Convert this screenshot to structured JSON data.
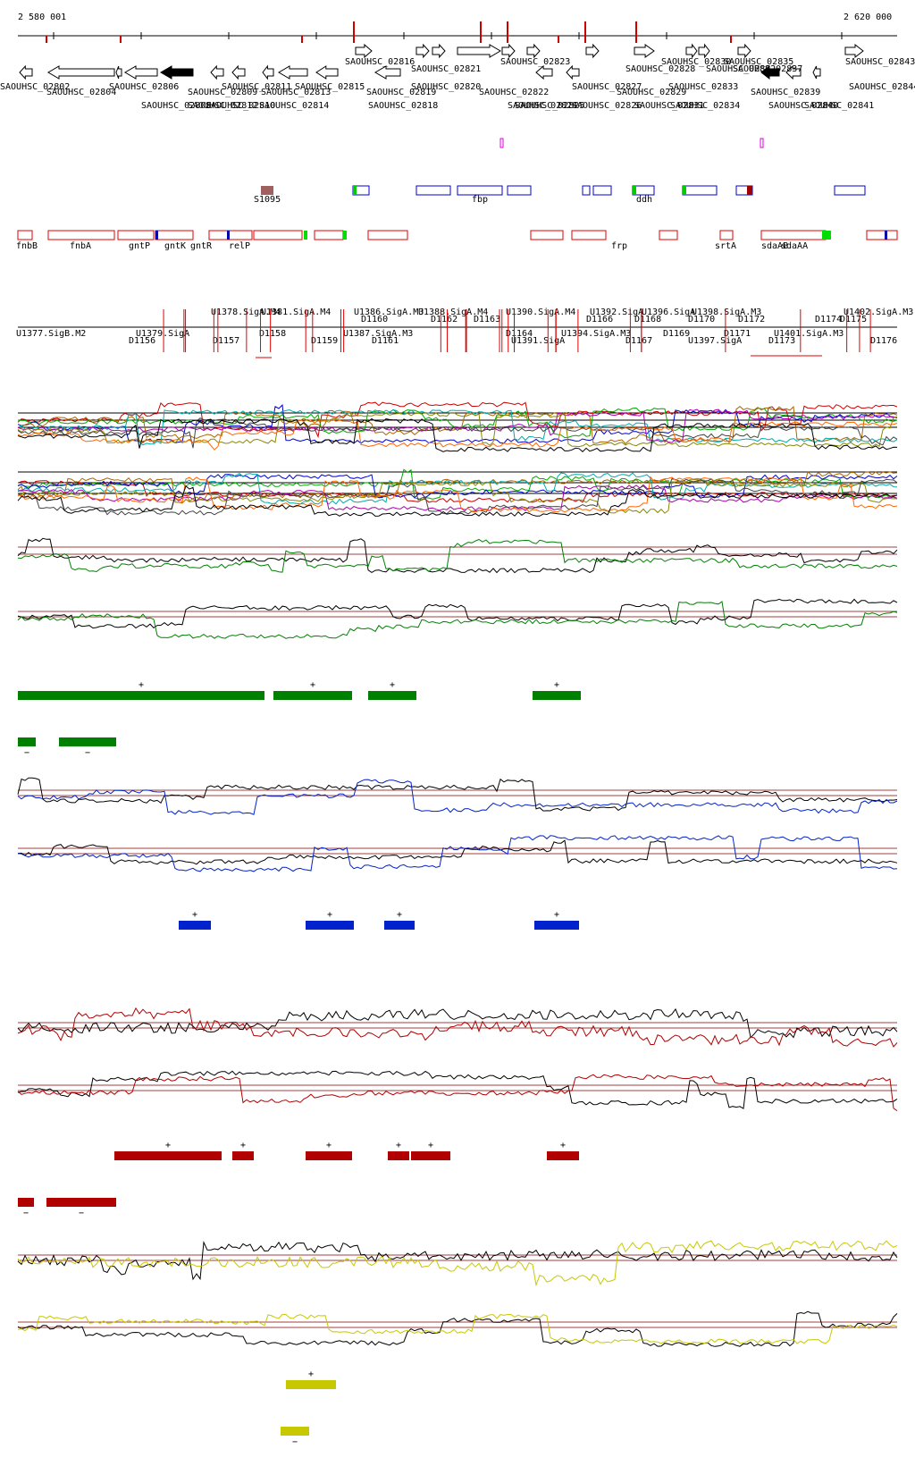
{
  "ruler": {
    "start_label": "2 580 001",
    "end_label": "2 620 000"
  },
  "genes_top": [
    {
      "label": "SAOUHSC_02816",
      "dir": "+"
    },
    {
      "label": "SAOUHSC_02821",
      "dir": "+"
    },
    {
      "label": "SAOUHSC_02823",
      "dir": "+"
    },
    {
      "label": "SAOUHSC_02828",
      "dir": "+"
    },
    {
      "label": "SAOUHSC_02830",
      "dir": "+"
    },
    {
      "label": "SAOUHSC_02832",
      "dir": "+"
    },
    {
      "label": "SAOUHSC_02835",
      "dir": "+"
    },
    {
      "label": "SAOUHSC_02837",
      "dir": "+"
    },
    {
      "label": "SAOUHSC_02843",
      "dir": "+"
    }
  ],
  "genes_bottom_row1": [
    "SAOUHSC_02802",
    "SAOUHSC_02804",
    "SAOUHSC_02806",
    "SAOUHSC_02809",
    "SAOUHSC_02811",
    "SAOUHSC_02813",
    "SAOUHSC_02815",
    "SAOUHSC_02819",
    "SAOUHSC_02820",
    "SAOUHSC_02822",
    "SAOUHSC_02827",
    "SAOUHSC_02829",
    "SAOUHSC_02833",
    "SAOUHSC_02839",
    "SAOUHSC_02844"
  ],
  "genes_bottom_row2": [
    "SAOUHSC_02808",
    "SAOUHSC_02810",
    "SAOUHSC_02812",
    "SAOUHSC_02814",
    "SAOUHSC_02818",
    "SAOUHSC_02824",
    "SAOUHSC_02825",
    "SAOUHSC_02826",
    "SAOUHSC_02831",
    "SAOUHSC_02834",
    "SAOUHSC_02840",
    "SAOUHSC_02841"
  ],
  "regulatory_labels": [
    {
      "text": "S1095"
    },
    {
      "text": "fbp"
    },
    {
      "text": "ddh"
    }
  ],
  "operon_labels": [
    {
      "text": "fnbB"
    },
    {
      "text": "fnbA"
    },
    {
      "text": "gntP"
    },
    {
      "text": "gntK"
    },
    {
      "text": "gntR"
    },
    {
      "text": "relP"
    },
    {
      "text": "frp"
    },
    {
      "text": "srtA"
    },
    {
      "text": "sdaAB"
    },
    {
      "text": "sdaAA"
    }
  ],
  "tu_above": [
    "U1378.SigA.M4",
    "U1381.SigA.M4",
    "U1386.SigA.M3",
    "U1388.SigA.M4",
    "U1390.SigA.M4",
    "U1392.SigA",
    "U1396.SigA",
    "U1398.SigA.M3",
    "U1402.SigA.M3",
    "D1160",
    "D1162",
    "D1163",
    "D1166",
    "D1168",
    "D1170",
    "D1172",
    "D1174",
    "D1175"
  ],
  "tu_below": [
    "U1377.SigB.M2",
    "D1156",
    "U1379.SigA",
    "D1157",
    "D1158",
    "D1159",
    "U1387.SigA.M3",
    "D1161",
    "D1164",
    "U1391.SigA",
    "U1394.SigA.M3",
    "D1167",
    "D1169",
    "U1397.SigA",
    "D1171",
    "D1173",
    "U1401.SigA.M3",
    "D1176"
  ],
  "segment_groups": [
    {
      "color": "#008000",
      "sign_pos": "+",
      "sign_neg": "−"
    },
    {
      "color": "#0022cc",
      "sign_pos": "+",
      "sign_neg": "−"
    },
    {
      "color": "#b00000",
      "sign_pos": "+",
      "sign_neg": "−"
    },
    {
      "color": "#c8c800",
      "sign_pos": "+",
      "sign_neg": "−"
    }
  ],
  "colors": {
    "gene_black": "#000000",
    "box_red": "#e00000",
    "box_blue": "#0000cc",
    "box_green": "#00dd00",
    "magenta": "#e000e0",
    "brown": "#a06060"
  }
}
